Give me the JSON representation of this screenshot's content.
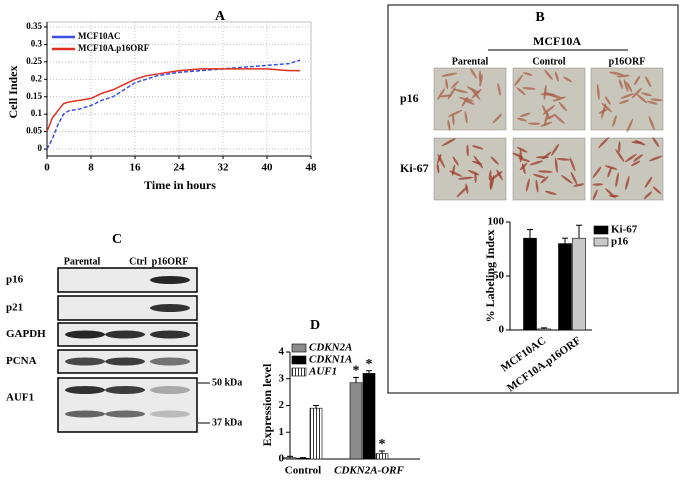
{
  "chart_data": [
    {
      "type": "line",
      "panel": "A",
      "xlabel": "Time in hours",
      "ylabel": "Cell Index",
      "x": [
        0,
        1,
        2,
        3,
        4,
        6,
        8,
        10,
        12,
        14,
        16,
        18,
        20,
        24,
        28,
        32,
        36,
        40,
        44,
        46
      ],
      "series": [
        {
          "name": "MCF10AC",
          "color": "#3b4fe0",
          "values": [
            0,
            0.03,
            0.07,
            0.1,
            0.11,
            0.115,
            0.125,
            0.14,
            0.15,
            0.17,
            0.19,
            0.2,
            0.21,
            0.22,
            0.225,
            0.23,
            0.235,
            0.24,
            0.245,
            0.255
          ]
        },
        {
          "name": "MCF10A.p16ORF",
          "color": "#e03020",
          "values": [
            0.05,
            0.09,
            0.11,
            0.13,
            0.135,
            0.14,
            0.145,
            0.16,
            0.17,
            0.185,
            0.2,
            0.21,
            0.215,
            0.225,
            0.23,
            0.23,
            0.23,
            0.23,
            0.225,
            0.225
          ]
        }
      ],
      "xlim": [
        0,
        48
      ],
      "xticks": [
        0,
        8,
        16,
        24,
        32,
        40,
        48
      ],
      "ylim": [
        -0.02,
        0.35
      ],
      "yticks": [
        0,
        0.05,
        0.1,
        0.15,
        0.2,
        0.25,
        0.3,
        0.35
      ],
      "grid": true,
      "legend": "upper left"
    },
    {
      "type": "bar",
      "panel": "B",
      "ylabel": "% Labeling Index",
      "categories": [
        "MCF10AC",
        "MCF10A.p16ORF"
      ],
      "series": [
        {
          "name": "Ki-67",
          "color": "#000000",
          "values": [
            85,
            80
          ],
          "errors": [
            8,
            5
          ]
        },
        {
          "name": "p16",
          "color": "#c8c8c8",
          "values": [
            1,
            85
          ],
          "errors": [
            1,
            12
          ]
        }
      ],
      "ylim": [
        0,
        100
      ],
      "yticks": [
        0,
        50,
        100
      ],
      "legend": "upper right"
    },
    {
      "type": "bar",
      "panel": "D",
      "ylabel": "Expression level",
      "categories": [
        "Control",
        "CDKN2A-ORF"
      ],
      "series": [
        {
          "name": "CDKN2A",
          "color": "#8c8c8c",
          "values": [
            0.05,
            2.85
          ],
          "errors": [
            0.05,
            0.2
          ],
          "significance": [
            null,
            "*"
          ]
        },
        {
          "name": "CDKN1A",
          "color": "#000000",
          "values": [
            0.03,
            3.2
          ],
          "errors": [
            0.02,
            0.1
          ],
          "significance": [
            null,
            "*"
          ]
        },
        {
          "name": "AUF1",
          "color": "#ffffff",
          "pattern": "vertical-lines",
          "values": [
            1.9,
            0.2
          ],
          "errors": [
            0.1,
            0.1
          ],
          "significance": [
            null,
            "*"
          ]
        }
      ],
      "ylim": [
        0,
        4
      ],
      "yticks": [
        0,
        1,
        2,
        3,
        4
      ],
      "legend": "upper left"
    }
  ],
  "microscopy": {
    "panel": "B",
    "group": "MCF10A",
    "columns": [
      "Parental",
      "Control",
      "p16ORF"
    ],
    "rows": [
      "p16",
      "Ki-67"
    ]
  },
  "western_blot": {
    "panel": "C",
    "columns": [
      "Parental",
      "Ctrl",
      "p16ORF"
    ],
    "rows": [
      "p16",
      "p21",
      "GAPDH",
      "PCNA",
      "AUF1"
    ],
    "markers": [
      "50 kDa",
      "37 kDa"
    ]
  }
}
